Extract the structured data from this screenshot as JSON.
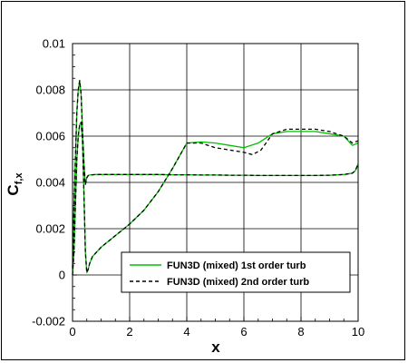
{
  "chart_data": {
    "type": "line",
    "title": "",
    "xlabel": "x",
    "ylabel": "C",
    "ylabel_subscript": "f,x",
    "xlim": [
      0,
      10
    ],
    "ylim": [
      -0.002,
      0.01
    ],
    "x_ticks": [
      "0",
      "2",
      "4",
      "6",
      "8",
      "10"
    ],
    "y_ticks": [
      "-0.002",
      "0",
      "0.002",
      "0.004",
      "0.006",
      "0.008",
      "0.01"
    ],
    "grid": true,
    "legend_position": "lower-right",
    "colors": {
      "first_order": "#00c000",
      "second_order": "#000000"
    },
    "series": [
      {
        "name": "FUN3D (mixed) 1st order turb",
        "style": "solid",
        "upper": {
          "x": [
            0,
            0.02,
            0.05,
            0.1,
            0.15,
            0.2,
            0.25,
            0.3,
            0.35,
            0.4,
            0.45,
            0.5,
            0.55,
            0.6,
            0.7,
            0.8,
            1,
            1.5,
            2,
            2.5,
            3,
            3.5,
            4,
            4.5,
            5,
            5.5,
            6,
            6.5,
            7,
            7.5,
            8,
            8.5,
            9,
            9.5,
            9.8,
            9.9,
            10
          ],
          "y": [
            0.0003,
            0.0012,
            0.003,
            0.005,
            0.007,
            0.008,
            0.0084,
            0.0078,
            0.0062,
            0.0048,
            0.0039,
            0.0042,
            0.0043,
            0.00432,
            0.00433,
            0.00434,
            0.00434,
            0.00434,
            0.00434,
            0.00434,
            0.00434,
            0.00433,
            0.00433,
            0.00432,
            0.00432,
            0.00431,
            0.00431,
            0.0043,
            0.0043,
            0.0043,
            0.0043,
            0.0043,
            0.00431,
            0.00434,
            0.0044,
            0.0045,
            0.0048
          ]
        },
        "lower": {
          "x": [
            0,
            0.05,
            0.1,
            0.15,
            0.2,
            0.25,
            0.3,
            0.35,
            0.4,
            0.45,
            0.5,
            0.55,
            0.6,
            0.7,
            1,
            1.5,
            2,
            2.5,
            3,
            3.5,
            4,
            4.5,
            5,
            5.5,
            6,
            6.5,
            7,
            7.5,
            8,
            8.5,
            9,
            9.5,
            9.8,
            10
          ],
          "y": [
            0,
            0.001,
            0.003,
            0.005,
            0.006,
            0.0065,
            0.0066,
            0.0058,
            0.0035,
            0.001,
            0.0001,
            0.00025,
            0.0005,
            0.0008,
            0.0012,
            0.0017,
            0.0022,
            0.0028,
            0.0036,
            0.0046,
            0.0057,
            0.00575,
            0.0057,
            0.0056,
            0.0055,
            0.0057,
            0.0061,
            0.0062,
            0.0062,
            0.0062,
            0.0061,
            0.006,
            0.0056,
            0.0057
          ]
        }
      },
      {
        "name": "FUN3D (mixed) 2nd order turb",
        "style": "dashed",
        "upper": {
          "x": [
            0,
            0.02,
            0.05,
            0.1,
            0.15,
            0.2,
            0.25,
            0.3,
            0.35,
            0.4,
            0.45,
            0.5,
            0.55,
            0.6,
            0.7,
            0.8,
            1,
            1.5,
            2,
            2.5,
            3,
            3.5,
            4,
            4.5,
            5,
            5.5,
            6,
            6.5,
            7,
            7.5,
            8,
            8.5,
            9,
            9.5,
            9.8,
            9.9,
            10
          ],
          "y": [
            0.0003,
            0.0012,
            0.003,
            0.005,
            0.007,
            0.008,
            0.0084,
            0.0078,
            0.0062,
            0.0048,
            0.0039,
            0.0042,
            0.0043,
            0.00432,
            0.00433,
            0.00434,
            0.00434,
            0.00434,
            0.00434,
            0.00434,
            0.00434,
            0.00433,
            0.00433,
            0.00432,
            0.00432,
            0.00431,
            0.00431,
            0.0043,
            0.0043,
            0.0043,
            0.0043,
            0.0043,
            0.00431,
            0.00434,
            0.0044,
            0.0045,
            0.0048
          ]
        },
        "lower": {
          "x": [
            0,
            0.05,
            0.1,
            0.15,
            0.2,
            0.25,
            0.3,
            0.35,
            0.4,
            0.45,
            0.5,
            0.55,
            0.6,
            0.7,
            1,
            1.5,
            2,
            2.5,
            3,
            3.5,
            4,
            4.5,
            5,
            5.5,
            6,
            6.3,
            6.6,
            7,
            7.5,
            8,
            8.5,
            9,
            9.5,
            9.8,
            10
          ],
          "y": [
            0,
            0.001,
            0.003,
            0.005,
            0.006,
            0.0065,
            0.0066,
            0.0058,
            0.0035,
            0.001,
            0.0001,
            0.00025,
            0.0005,
            0.0008,
            0.0012,
            0.0017,
            0.0022,
            0.0028,
            0.0036,
            0.0046,
            0.0057,
            0.0057,
            0.0055,
            0.0054,
            0.0053,
            0.0052,
            0.0054,
            0.0061,
            0.0063,
            0.0063,
            0.0063,
            0.0062,
            0.006,
            0.0057,
            0.0058
          ]
        }
      }
    ]
  }
}
